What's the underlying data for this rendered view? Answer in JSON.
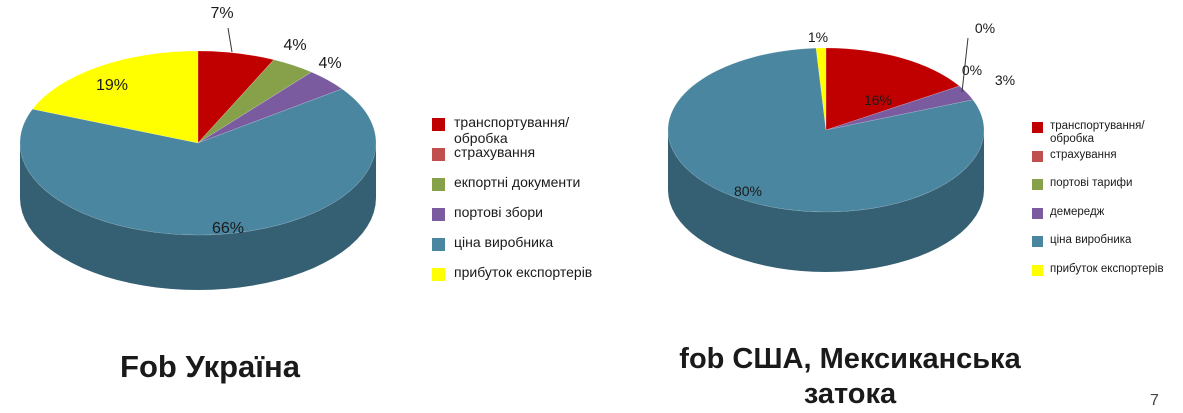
{
  "chart_data": [
    {
      "type": "pie",
      "title": "Fob Україна",
      "slices": [
        {
          "label": "транспортування/ обробка",
          "value": 7,
          "display": "7%",
          "color": "#c00000"
        },
        {
          "label": "страхування",
          "value": 0,
          "display": "",
          "color": "#c0504d"
        },
        {
          "label": "екпортні документи",
          "value": 4,
          "display": "4%",
          "color": "#86a14a"
        },
        {
          "label": "портові збори",
          "value": 4,
          "display": "4%",
          "color": "#7a5ba0"
        },
        {
          "label": "ціна виробника",
          "value": 66,
          "display": "66%",
          "color": "#4a86a0"
        },
        {
          "label": "прибуток експортерів",
          "value": 19,
          "display": "19%",
          "color": "#ffff00"
        }
      ],
      "legend_position": "right"
    },
    {
      "type": "pie",
      "title": "fob США, Мексиканська затока",
      "slices": [
        {
          "label": "транспортування/ обробка",
          "value": 16,
          "display": "16%",
          "color": "#c00000"
        },
        {
          "label": "страхування",
          "value": 0,
          "display": "0%",
          "color": "#c0504d"
        },
        {
          "label": "портові тарифи",
          "value": 0,
          "display": "0%",
          "color": "#86a14a"
        },
        {
          "label": "демередж",
          "value": 3,
          "display": "3%",
          "color": "#7a5ba0"
        },
        {
          "label": "ціна виробника",
          "value": 80,
          "display": "80%",
          "color": "#4a86a0"
        },
        {
          "label": "прибуток експортерів",
          "value": 1,
          "display": "1%",
          "color": "#ffff00"
        }
      ],
      "legend_position": "right"
    }
  ],
  "page_number": "7"
}
